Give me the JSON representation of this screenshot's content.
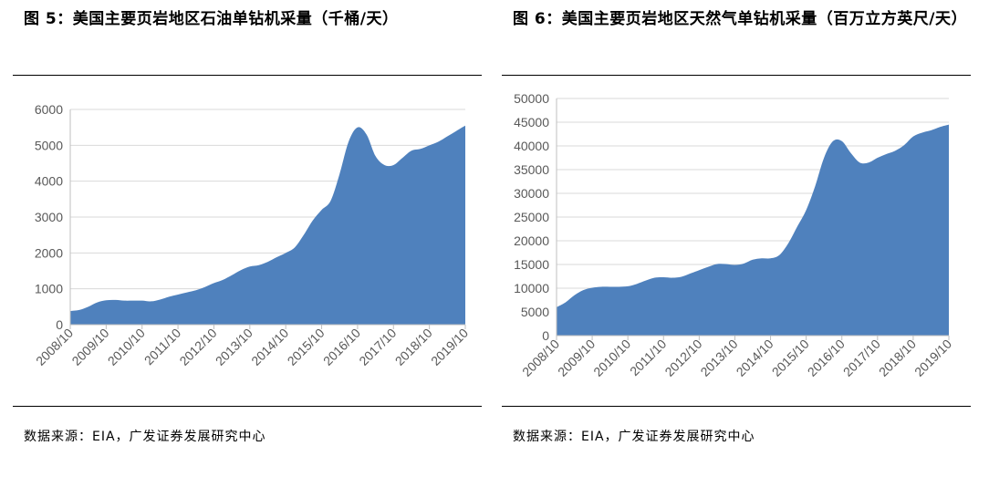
{
  "charts": [
    {
      "title": "图 5：美国主要页岩地区石油单钻机采量（千桶/天）",
      "source": "数据来源：EIA，广发证券发展研究中心",
      "chart_data": {
        "type": "area",
        "title": "",
        "xlabel": "",
        "ylabel": "",
        "ylim": [
          0,
          6000
        ],
        "yticks": [
          0,
          1000,
          2000,
          3000,
          4000,
          5000,
          6000
        ],
        "grid": true,
        "legend": "none",
        "color": "#4f81bd",
        "categories": [
          "2008/10",
          "2009/10",
          "2010/10",
          "2011/10",
          "2012/10",
          "2013/10",
          "2014/10",
          "2015/10",
          "2016/10",
          "2017/10",
          "2018/10",
          "2019/10"
        ],
        "x": [
          "2008/10",
          "2009/01",
          "2009/04",
          "2009/07",
          "2009/10",
          "2010/01",
          "2010/04",
          "2010/07",
          "2010/10",
          "2011/01",
          "2011/04",
          "2011/07",
          "2011/10",
          "2012/01",
          "2012/04",
          "2012/07",
          "2012/10",
          "2013/01",
          "2013/04",
          "2013/07",
          "2013/10",
          "2014/01",
          "2014/04",
          "2014/07",
          "2014/10",
          "2015/01",
          "2015/04",
          "2015/07",
          "2015/10",
          "2016/01",
          "2016/04",
          "2016/07",
          "2016/10",
          "2017/01",
          "2017/04",
          "2017/07",
          "2017/10",
          "2018/01",
          "2018/04",
          "2018/07",
          "2018/10",
          "2019/01",
          "2019/04",
          "2019/07",
          "2019/10"
        ],
        "y": [
          380,
          410,
          500,
          620,
          680,
          690,
          670,
          670,
          670,
          650,
          700,
          780,
          840,
          900,
          960,
          1050,
          1160,
          1250,
          1380,
          1520,
          1620,
          1660,
          1750,
          1880,
          2000,
          2150,
          2500,
          2900,
          3200,
          3450,
          4200,
          5100,
          5500,
          5300,
          4700,
          4450,
          4450,
          4650,
          4850,
          4900,
          5000,
          5100,
          5250,
          5400,
          5550
        ]
      }
    },
    {
      "title": "图 6：美国主要页岩地区天然气单钻机采量（百万立方英尺/天）",
      "source": "数据来源：EIA，广发证券发展研究中心",
      "chart_data": {
        "type": "area",
        "title": "",
        "xlabel": "",
        "ylabel": "",
        "ylim": [
          0,
          50000
        ],
        "yticks": [
          0,
          5000,
          10000,
          15000,
          20000,
          25000,
          30000,
          35000,
          40000,
          45000,
          50000
        ],
        "grid": true,
        "legend": "none",
        "color": "#4f81bd",
        "categories": [
          "2008/10",
          "2009/10",
          "2010/10",
          "2011/10",
          "2012/10",
          "2013/10",
          "2014/10",
          "2015/10",
          "2016/10",
          "2017/10",
          "2018/10",
          "2019/10"
        ],
        "x": [
          "2008/10",
          "2009/01",
          "2009/04",
          "2009/07",
          "2009/10",
          "2010/01",
          "2010/04",
          "2010/07",
          "2010/10",
          "2011/01",
          "2011/04",
          "2011/07",
          "2011/10",
          "2012/01",
          "2012/04",
          "2012/07",
          "2012/10",
          "2013/01",
          "2013/04",
          "2013/07",
          "2013/10",
          "2014/01",
          "2014/04",
          "2014/07",
          "2014/10",
          "2015/01",
          "2015/04",
          "2015/07",
          "2015/10",
          "2016/01",
          "2016/04",
          "2016/07",
          "2016/10",
          "2017/01",
          "2017/04",
          "2017/07",
          "2017/10",
          "2018/01",
          "2018/04",
          "2018/07",
          "2018/10",
          "2019/01",
          "2019/04",
          "2019/07",
          "2019/10"
        ],
        "y": [
          6000,
          7000,
          8500,
          9600,
          10100,
          10300,
          10300,
          10300,
          10400,
          10900,
          11600,
          12200,
          12300,
          12200,
          12400,
          13100,
          13800,
          14500,
          15100,
          15100,
          14900,
          15200,
          16000,
          16300,
          16300,
          17000,
          19500,
          23000,
          26500,
          31500,
          37500,
          41000,
          41000,
          38500,
          36500,
          36500,
          37500,
          38300,
          39000,
          40200,
          42000,
          42800,
          43300,
          44000,
          44500
        ]
      }
    }
  ]
}
